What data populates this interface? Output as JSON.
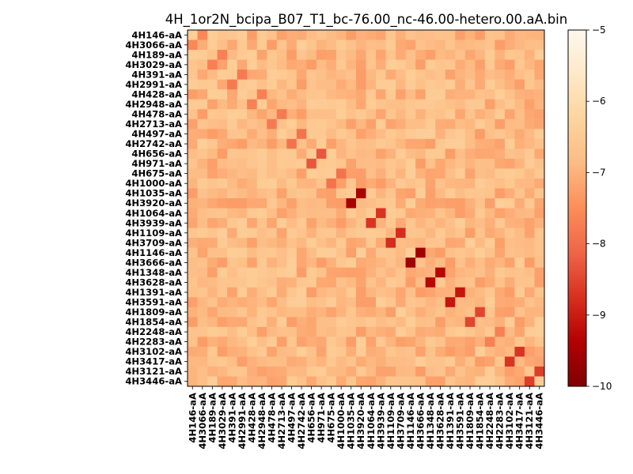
{
  "chart_data": {
    "type": "heatmap",
    "title": "4H_1or2N_bcipa_B07_T1_bc-76.00_nc-46.00-hetero.00.aA.bin",
    "labels": [
      "4H146-aA",
      "4H3066-aA",
      "4H189-aA",
      "4H3029-aA",
      "4H391-aA",
      "4H2991-aA",
      "4H428-aA",
      "4H2948-aA",
      "4H478-aA",
      "4H2713-aA",
      "4H497-aA",
      "4H2742-aA",
      "4H656-aA",
      "4H971-aA",
      "4H675-aA",
      "4H1000-aA",
      "4H1035-aA",
      "4H3920-aA",
      "4H1064-aA",
      "4H3939-aA",
      "4H1109-aA",
      "4H3709-aA",
      "4H1146-aA",
      "4H3666-aA",
      "4H1348-aA",
      "4H3628-aA",
      "4H1391-aA",
      "4H3591-aA",
      "4H1809-aA",
      "4H1854-aA",
      "4H2248-aA",
      "4H2283-aA",
      "4H3102-aA",
      "4H3417-aA",
      "4H3121-aA",
      "4H3446-aA"
    ],
    "colorbar": {
      "min": -10,
      "max": -5,
      "ticks": [
        "−10",
        "−9",
        "−8",
        "−7",
        "−6",
        "−5"
      ],
      "colormap": "OrRd_r"
    },
    "strong_pairs": [
      [
        "4H146-aA",
        "4H3066-aA",
        -7.6
      ],
      [
        "4H189-aA",
        "4H3029-aA",
        -7.7
      ],
      [
        "4H391-aA",
        "4H2991-aA",
        -7.8
      ],
      [
        "4H428-aA",
        "4H2948-aA",
        -7.7
      ],
      [
        "4H478-aA",
        "4H2713-aA",
        -7.8
      ],
      [
        "4H497-aA",
        "4H2742-aA",
        -7.9
      ],
      [
        "4H656-aA",
        "4H971-aA",
        -8.3
      ],
      [
        "4H675-aA",
        "4H1000-aA",
        -7.9
      ],
      [
        "4H1035-aA",
        "4H3920-aA",
        -9.5
      ],
      [
        "4H1064-aA",
        "4H3939-aA",
        -8.7
      ],
      [
        "4H1109-aA",
        "4H3709-aA",
        -8.8
      ],
      [
        "4H1146-aA",
        "4H3666-aA",
        -9.6
      ],
      [
        "4H1348-aA",
        "4H3628-aA",
        -9.3
      ],
      [
        "4H1391-aA",
        "4H3591-aA",
        -9.1
      ],
      [
        "4H1809-aA",
        "4H1854-aA",
        -8.5
      ],
      [
        "4H2248-aA",
        "4H2283-aA",
        -7.7
      ],
      [
        "4H3102-aA",
        "4H3417-aA",
        -8.7
      ],
      [
        "4H3121-aA",
        "4H3446-aA",
        -8.6
      ]
    ]
  }
}
